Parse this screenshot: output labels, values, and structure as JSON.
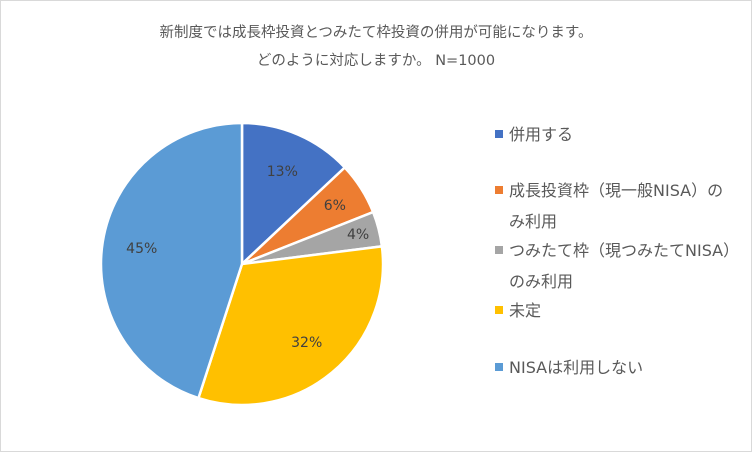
{
  "chart_data": {
    "type": "pie",
    "title": [
      "新制度では成長枠投資とつみたて枠投資の併用が可能になります。",
      "どのように対応しますか。 N=1000"
    ],
    "start_angle": "12 o'clock",
    "direction": "clockwise",
    "legend_position": "right",
    "slices": [
      {
        "label": "併用する",
        "value": 13,
        "data_label": "13%",
        "color": "#4472C4"
      },
      {
        "label": "成長投資枠（現一般NISA）のみ利用",
        "value": 6,
        "data_label": "6%",
        "color": "#ED7D31"
      },
      {
        "label": "つみたて枠（現つみたてNISA）のみ利用",
        "value": 4,
        "data_label": "4%",
        "color": "#A5A5A5"
      },
      {
        "label": "未定",
        "value": 32,
        "data_label": "32%",
        "color": "#FFC000"
      },
      {
        "label": "NISAは利用しない",
        "value": 45,
        "data_label": "45%",
        "color": "#5B9BD5"
      }
    ]
  }
}
